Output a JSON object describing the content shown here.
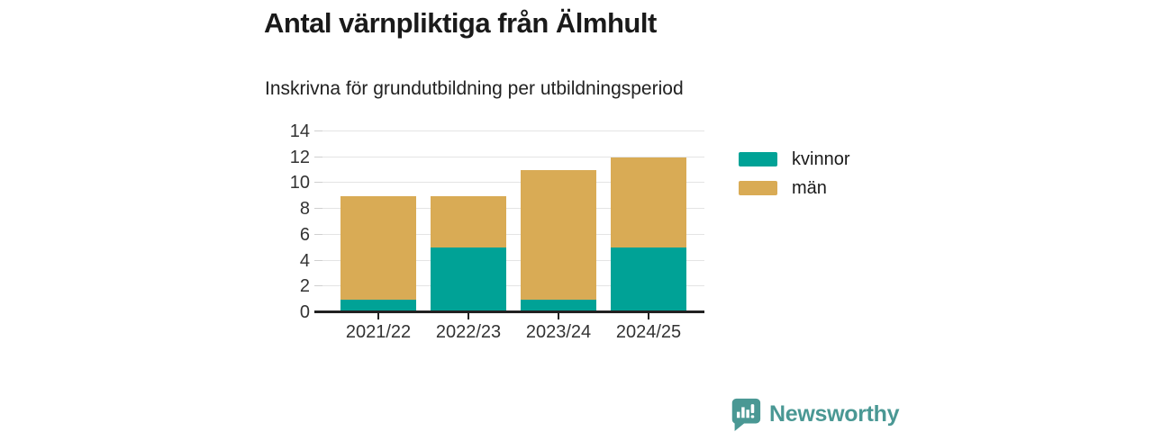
{
  "chart_data": {
    "type": "bar",
    "stacked": true,
    "title": "Antal värnpliktiga från Älmhult",
    "subtitle": "Inskrivna för grundutbildning per utbildningsperiod",
    "categories": [
      "2021/22",
      "2022/23",
      "2023/24",
      "2024/25"
    ],
    "series": [
      {
        "name": "kvinnor",
        "color": "#00a296",
        "values": [
          1,
          5,
          1,
          5
        ]
      },
      {
        "name": "män",
        "color": "#d9ab55",
        "values": [
          8,
          4,
          10,
          7
        ]
      }
    ],
    "stacked_totals": [
      9,
      9,
      11,
      12
    ],
    "xlabel": "",
    "ylabel": "",
    "ylim": [
      0,
      14
    ],
    "yticks": [
      0,
      2,
      4,
      6,
      8,
      10,
      12,
      14
    ],
    "grid": true,
    "legend_position": "right"
  },
  "footer": {
    "brand": "Newsworthy",
    "brand_color": "#4a9894",
    "logo_icon": "bar-chart-speech-bubble-icon"
  }
}
